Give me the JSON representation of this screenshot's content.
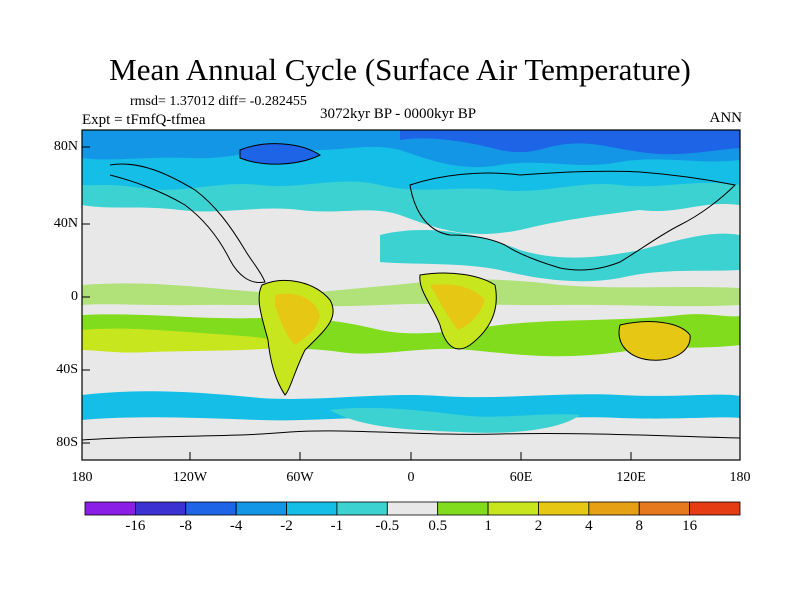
{
  "title": "Mean Annual Cycle (Surface Air Temperature)",
  "stats": "rmsd= 1.37012 diff= -0.282455",
  "experiment": "Expt = tFmfQ-tfmea",
  "period": "3072kyr BP - 0000kyr BP",
  "season": "ANN",
  "lat_labels": [
    "80N",
    "40N",
    "0",
    "40S",
    "80S"
  ],
  "lon_labels": [
    "180",
    "120W",
    "60W",
    "0",
    "60E",
    "120E",
    "180"
  ],
  "colorbar": {
    "labels": [
      "-16",
      "-8",
      "-4",
      "-2",
      "-1",
      "-0.5",
      "0.5",
      "1",
      "2",
      "4",
      "8",
      "16"
    ],
    "colors": [
      "#8a1ee6",
      "#3c32d2",
      "#1e64e6",
      "#1496e6",
      "#14bee6",
      "#3cd2d2",
      "#e8e8e8",
      "#82dc1e",
      "#c8e61e",
      "#e6c814",
      "#e6a014",
      "#e6781e",
      "#e63c14"
    ]
  }
}
